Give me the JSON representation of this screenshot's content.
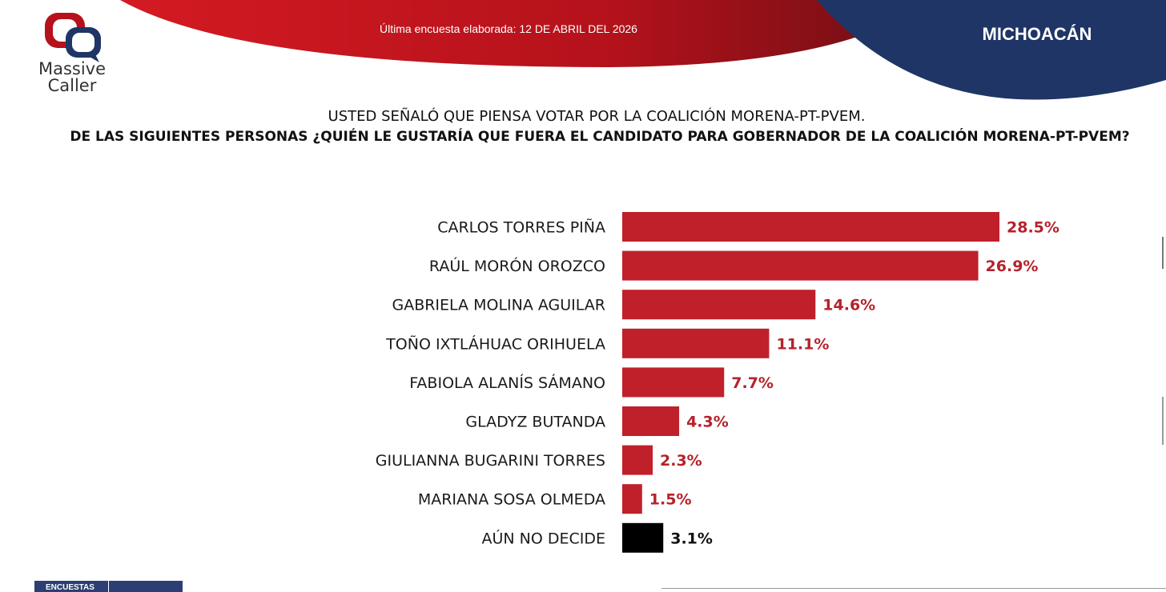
{
  "header": {
    "survey_date": "Última encuesta elaborada: 12 DE ABRIL DEL 2026",
    "region": "MICHOACÁN",
    "logo": {
      "line1": "Massive",
      "line2": "Caller",
      "icon": "speech-bubbles-logo"
    }
  },
  "question": {
    "line1": "USTED SEÑALÓ QUE PIENSA VOTAR POR LA COALICIÓN MORENA-PT-PVEM.",
    "line2": "DE LAS SIGUIENTES PERSONAS ¿QUIÉN LE GUSTARÍA QUE FUERA EL CANDIDATO PARA GOBERNADOR DE LA COALICIÓN MORENA-PT-PVEM?"
  },
  "footer": {
    "badge": "ENCUESTAS"
  },
  "colors": {
    "bar": "#c0202a",
    "undecided": "#000000",
    "banner_red": "#b5121b",
    "banner_navy": "#1f3566"
  },
  "chart_data": {
    "type": "bar",
    "orientation": "horizontal",
    "categories": [
      "CARLOS TORRES PIÑA",
      "RAÚL MORÓN OROZCO",
      "GABRIELA MOLINA AGUILAR",
      "TOÑO IXTLÁHUAC ORIHUELA",
      "FABIOLA ALANÍS SÁMANO",
      "GLADYZ BUTANDA",
      "GIULIANNA BUGARINI TORRES",
      "MARIANA SOSA OLMEDA",
      "AÚN NO DECIDE"
    ],
    "values": [
      28.5,
      26.9,
      14.6,
      11.1,
      7.7,
      4.3,
      2.3,
      1.5,
      3.1
    ],
    "value_labels": [
      "28.5%",
      "26.9%",
      "14.6%",
      "11.1%",
      "7.7%",
      "4.3%",
      "2.3%",
      "1.5%",
      "3.1%"
    ],
    "unit": "%",
    "xlim": [
      0,
      28.5
    ],
    "grid": false,
    "legend": "none"
  }
}
